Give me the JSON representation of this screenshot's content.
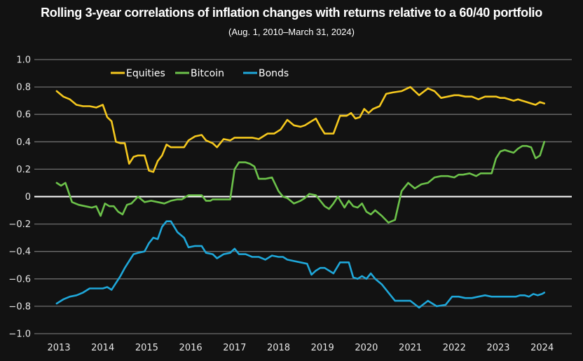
{
  "chart_data": {
    "type": "line",
    "title": "Rolling 3-year correlations of inflation changes with returns relative to a 60/40 portfolio",
    "subtitle": "(Aug. 1, 2010–March 31, 2024)",
    "xlabel": "",
    "ylabel": "",
    "ylim": [
      -1.0,
      1.0
    ],
    "yticks": [
      1.0,
      0.8,
      0.6,
      0.4,
      0.2,
      0,
      -0.2,
      -0.4,
      -0.6,
      -0.8,
      -1.0
    ],
    "ytick_labels": [
      "1.0",
      "0.8",
      "0.6",
      "0.4",
      "0.2",
      "0",
      "−0.2",
      "−0.4",
      "−0.6",
      "−0.8",
      "−1.0"
    ],
    "xlim": [
      2012.9,
      2024.3
    ],
    "xticks": [
      2013,
      2014,
      2015,
      2016,
      2017,
      2018,
      2019,
      2020,
      2021,
      2022,
      2023,
      2024
    ],
    "xtick_labels": [
      "2013",
      "2014",
      "2015",
      "2016",
      "2017",
      "2018",
      "2019",
      "2020",
      "2021",
      "2022",
      "2023",
      "2024"
    ],
    "grid": true,
    "zero_line": true,
    "legend_position": "top-left",
    "series": [
      {
        "name": "Equities",
        "color": "#f5c81e",
        "x": [
          2012.95,
          2013.1,
          2013.25,
          2013.4,
          2013.55,
          2013.7,
          2013.85,
          2014.0,
          2014.1,
          2014.2,
          2014.3,
          2014.4,
          2014.5,
          2014.6,
          2014.7,
          2014.8,
          2014.95,
          2015.05,
          2015.15,
          2015.25,
          2015.35,
          2015.45,
          2015.55,
          2015.7,
          2015.85,
          2015.95,
          2016.1,
          2016.25,
          2016.35,
          2016.5,
          2016.6,
          2016.75,
          2016.9,
          2017.0,
          2017.1,
          2017.25,
          2017.4,
          2017.55,
          2017.65,
          2017.75,
          2017.9,
          2018.05,
          2018.2,
          2018.35,
          2018.5,
          2018.6,
          2018.7,
          2018.85,
          2018.95,
          2019.05,
          2019.15,
          2019.25,
          2019.4,
          2019.55,
          2019.65,
          2019.75,
          2019.85,
          2019.95,
          2020.05,
          2020.15,
          2020.3,
          2020.45,
          2020.6,
          2020.8,
          2021.0,
          2021.2,
          2021.4,
          2021.55,
          2021.7,
          2021.85,
          2022.0,
          2022.1,
          2022.25,
          2022.4,
          2022.55,
          2022.7,
          2022.85,
          2022.95,
          2023.05,
          2023.15,
          2023.25,
          2023.35,
          2023.45,
          2023.55,
          2023.65,
          2023.75,
          2023.85,
          2023.95,
          2024.05
        ],
        "y": [
          0.77,
          0.73,
          0.71,
          0.67,
          0.66,
          0.66,
          0.65,
          0.67,
          0.58,
          0.55,
          0.4,
          0.39,
          0.39,
          0.24,
          0.29,
          0.3,
          0.3,
          0.19,
          0.18,
          0.26,
          0.3,
          0.38,
          0.36,
          0.36,
          0.36,
          0.41,
          0.44,
          0.45,
          0.41,
          0.39,
          0.36,
          0.42,
          0.41,
          0.43,
          0.43,
          0.43,
          0.43,
          0.42,
          0.44,
          0.46,
          0.46,
          0.49,
          0.56,
          0.52,
          0.51,
          0.52,
          0.54,
          0.57,
          0.51,
          0.46,
          0.46,
          0.46,
          0.59,
          0.59,
          0.61,
          0.57,
          0.58,
          0.64,
          0.61,
          0.64,
          0.66,
          0.75,
          0.76,
          0.77,
          0.8,
          0.74,
          0.79,
          0.77,
          0.72,
          0.73,
          0.74,
          0.74,
          0.73,
          0.73,
          0.71,
          0.73,
          0.73,
          0.73,
          0.72,
          0.72,
          0.71,
          0.7,
          0.71,
          0.7,
          0.69,
          0.68,
          0.67,
          0.69,
          0.68
        ],
        "y_tail_note": "",
        "x_tail": [
          2024.15,
          2024.3
        ],
        "y_tail": []
      },
      {
        "name": "Bitcoin",
        "color": "#6cc24a",
        "x": [
          2012.95,
          2013.05,
          2013.15,
          2013.3,
          2013.45,
          2013.6,
          2013.75,
          2013.85,
          2013.95,
          2014.05,
          2014.15,
          2014.25,
          2014.35,
          2014.45,
          2014.55,
          2014.65,
          2014.8,
          2014.95,
          2015.1,
          2015.25,
          2015.4,
          2015.55,
          2015.7,
          2015.8,
          2015.95,
          2016.1,
          2016.25,
          2016.35,
          2016.45,
          2016.5,
          2016.6,
          2016.75,
          2016.9,
          2017.0,
          2017.1,
          2017.25,
          2017.35,
          2017.45,
          2017.55,
          2017.7,
          2017.85,
          2018.0,
          2018.1,
          2018.2,
          2018.35,
          2018.5,
          2018.6,
          2018.7,
          2018.85,
          2018.95,
          2019.05,
          2019.15,
          2019.25,
          2019.35,
          2019.5,
          2019.6,
          2019.7,
          2019.8,
          2019.9,
          2020.0,
          2020.1,
          2020.2,
          2020.35,
          2020.5,
          2020.65,
          2020.8,
          2020.95,
          2021.1,
          2021.25,
          2021.4,
          2021.55,
          2021.7,
          2021.85,
          2022.0,
          2022.1,
          2022.2,
          2022.35,
          2022.5,
          2022.6,
          2022.7,
          2022.85,
          2022.95,
          2023.05,
          2023.15,
          2023.25,
          2023.35,
          2023.45,
          2023.55,
          2023.65,
          2023.75,
          2023.85,
          2023.95,
          2024.05
        ],
        "y": [
          0.1,
          0.08,
          0.1,
          -0.04,
          -0.06,
          -0.07,
          -0.08,
          -0.07,
          -0.14,
          -0.05,
          -0.07,
          -0.07,
          -0.11,
          -0.13,
          -0.06,
          -0.05,
          0.0,
          -0.04,
          -0.03,
          -0.04,
          -0.05,
          -0.03,
          -0.02,
          -0.02,
          0.01,
          0.01,
          0.01,
          -0.03,
          -0.03,
          -0.02,
          -0.02,
          -0.02,
          -0.02,
          0.2,
          0.25,
          0.25,
          0.24,
          0.22,
          0.13,
          0.13,
          0.14,
          0.04,
          0.0,
          -0.01,
          -0.05,
          -0.03,
          -0.01,
          0.02,
          0.01,
          -0.03,
          -0.07,
          -0.09,
          -0.05,
          0.0,
          -0.08,
          -0.03,
          -0.07,
          -0.08,
          -0.05,
          -0.11,
          -0.13,
          -0.1,
          -0.14,
          -0.19,
          -0.17,
          0.04,
          0.1,
          0.06,
          0.09,
          0.1,
          0.14,
          0.15,
          0.15,
          0.14,
          0.16,
          0.16,
          0.17,
          0.15,
          0.17,
          0.17,
          0.17,
          0.28,
          0.33,
          0.34,
          0.33,
          0.32,
          0.35,
          0.37,
          0.37,
          0.36,
          0.28,
          0.3,
          0.4
        ],
        "x_tail": [
          2024.15,
          2024.3
        ],
        "y_tail": []
      },
      {
        "name": "Bonds",
        "color": "#1fa7d9",
        "x": [
          2012.95,
          2013.1,
          2013.25,
          2013.4,
          2013.55,
          2013.7,
          2013.85,
          2014.0,
          2014.1,
          2014.2,
          2014.3,
          2014.4,
          2014.5,
          2014.6,
          2014.7,
          2014.8,
          2014.95,
          2015.05,
          2015.15,
          2015.25,
          2015.35,
          2015.45,
          2015.55,
          2015.7,
          2015.85,
          2015.95,
          2016.1,
          2016.25,
          2016.35,
          2016.5,
          2016.6,
          2016.75,
          2016.9,
          2017.0,
          2017.1,
          2017.25,
          2017.4,
          2017.55,
          2017.7,
          2017.85,
          2018.0,
          2018.1,
          2018.2,
          2018.35,
          2018.5,
          2018.65,
          2018.75,
          2018.85,
          2018.95,
          2019.05,
          2019.15,
          2019.25,
          2019.4,
          2019.5,
          2019.6,
          2019.7,
          2019.8,
          2019.9,
          2020.0,
          2020.1,
          2020.2,
          2020.35,
          2020.5,
          2020.65,
          2020.8,
          2021.0,
          2021.2,
          2021.4,
          2021.6,
          2021.8,
          2021.95,
          2022.1,
          2022.25,
          2022.4,
          2022.55,
          2022.7,
          2022.85,
          2023.0,
          2023.1,
          2023.2,
          2023.3,
          2023.4,
          2023.5,
          2023.6,
          2023.7,
          2023.8,
          2023.9,
          2024.0,
          2024.05
        ],
        "y": [
          -0.78,
          -0.75,
          -0.73,
          -0.72,
          -0.7,
          -0.67,
          -0.67,
          -0.67,
          -0.66,
          -0.68,
          -0.63,
          -0.58,
          -0.52,
          -0.47,
          -0.42,
          -0.41,
          -0.4,
          -0.34,
          -0.3,
          -0.31,
          -0.22,
          -0.18,
          -0.18,
          -0.26,
          -0.3,
          -0.37,
          -0.36,
          -0.36,
          -0.41,
          -0.42,
          -0.45,
          -0.42,
          -0.41,
          -0.38,
          -0.42,
          -0.42,
          -0.44,
          -0.44,
          -0.46,
          -0.43,
          -0.44,
          -0.44,
          -0.46,
          -0.47,
          -0.48,
          -0.49,
          -0.57,
          -0.54,
          -0.52,
          -0.52,
          -0.54,
          -0.56,
          -0.48,
          -0.48,
          -0.48,
          -0.59,
          -0.6,
          -0.58,
          -0.6,
          -0.56,
          -0.6,
          -0.64,
          -0.7,
          -0.76,
          -0.76,
          -0.76,
          -0.81,
          -0.76,
          -0.8,
          -0.79,
          -0.73,
          -0.73,
          -0.74,
          -0.74,
          -0.73,
          -0.72,
          -0.73,
          -0.73,
          -0.73,
          -0.73,
          -0.73,
          -0.73,
          -0.72,
          -0.72,
          -0.73,
          -0.71,
          -0.72,
          -0.71,
          -0.7
        ],
        "x_tail": [
          2024.15,
          2024.3
        ],
        "y_tail": []
      }
    ]
  }
}
